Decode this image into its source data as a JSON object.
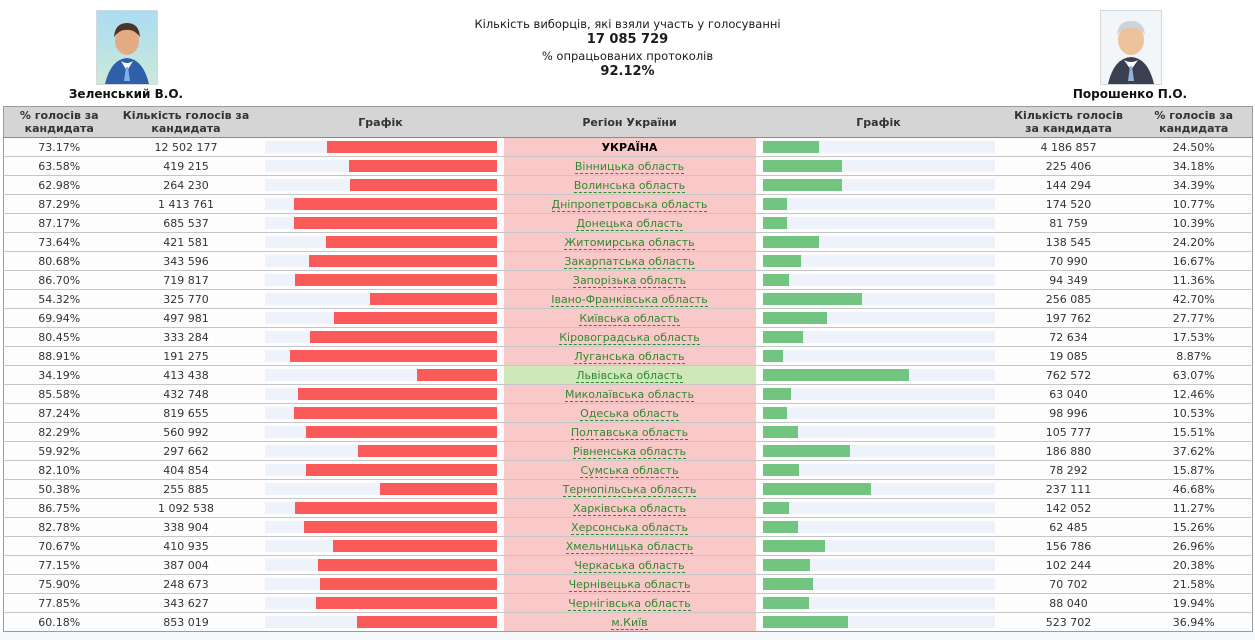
{
  "header": {
    "turnout_label": "Кількість виборців, які взяли участь у голосуванні",
    "turnout_value": "17 085 729",
    "protocols_label": "% опрацьованих протоколів",
    "protocols_value": "92.12%",
    "candidate_left": {
      "name": "Зеленський В.О."
    },
    "candidate_right": {
      "name": "Порошенко П.О."
    }
  },
  "table": {
    "columns": [
      "% голосів за кандидата",
      "Кількість голосів за кандидата",
      "Графік",
      "Регіон України",
      "Графік",
      "Кількість голосів за кандидата",
      "% голосів за кандидата"
    ],
    "rows": [
      {
        "region": "УКРАЇНА",
        "zelensky_pct": "73.17%",
        "zelensky_votes": "12 502 177",
        "poroshenko_votes": "4 186 857",
        "poroshenko_pct": "24.50%",
        "is_total": true,
        "highlight": false
      },
      {
        "region": "Вінницька область",
        "zelensky_pct": "63.58%",
        "zelensky_votes": "419 215",
        "poroshenko_votes": "225 406",
        "poroshenko_pct": "34.18%",
        "is_total": false,
        "highlight": false
      },
      {
        "region": "Волинська область",
        "zelensky_pct": "62.98%",
        "zelensky_votes": "264 230",
        "poroshenko_votes": "144 294",
        "poroshenko_pct": "34.39%",
        "is_total": false,
        "highlight": false
      },
      {
        "region": "Дніпропетровська область",
        "zelensky_pct": "87.29%",
        "zelensky_votes": "1 413 761",
        "poroshenko_votes": "174 520",
        "poroshenko_pct": "10.77%",
        "is_total": false,
        "highlight": false
      },
      {
        "region": "Донецька область",
        "zelensky_pct": "87.17%",
        "zelensky_votes": "685 537",
        "poroshenko_votes": "81 759",
        "poroshenko_pct": "10.39%",
        "is_total": false,
        "highlight": false
      },
      {
        "region": "Житомирська область",
        "zelensky_pct": "73.64%",
        "zelensky_votes": "421 581",
        "poroshenko_votes": "138 545",
        "poroshenko_pct": "24.20%",
        "is_total": false,
        "highlight": false
      },
      {
        "region": "Закарпатська область",
        "zelensky_pct": "80.68%",
        "zelensky_votes": "343 596",
        "poroshenko_votes": "70 990",
        "poroshenko_pct": "16.67%",
        "is_total": false,
        "highlight": false
      },
      {
        "region": "Запорізька область",
        "zelensky_pct": "86.70%",
        "zelensky_votes": "719 817",
        "poroshenko_votes": "94 349",
        "poroshenko_pct": "11.36%",
        "is_total": false,
        "highlight": false
      },
      {
        "region": "Івано-Франківська область",
        "zelensky_pct": "54.32%",
        "zelensky_votes": "325 770",
        "poroshenko_votes": "256 085",
        "poroshenko_pct": "42.70%",
        "is_total": false,
        "highlight": false
      },
      {
        "region": "Київська область",
        "zelensky_pct": "69.94%",
        "zelensky_votes": "497 981",
        "poroshenko_votes": "197 762",
        "poroshenko_pct": "27.77%",
        "is_total": false,
        "highlight": false
      },
      {
        "region": "Кіровоградська область",
        "zelensky_pct": "80.45%",
        "zelensky_votes": "333 284",
        "poroshenko_votes": "72 634",
        "poroshenko_pct": "17.53%",
        "is_total": false,
        "highlight": false
      },
      {
        "region": "Луганська область",
        "zelensky_pct": "88.91%",
        "zelensky_votes": "191 275",
        "poroshenko_votes": "19 085",
        "poroshenko_pct": "8.87%",
        "is_total": false,
        "highlight": false
      },
      {
        "region": "Львівська область",
        "zelensky_pct": "34.19%",
        "zelensky_votes": "413 438",
        "poroshenko_votes": "762 572",
        "poroshenko_pct": "63.07%",
        "is_total": false,
        "highlight": true
      },
      {
        "region": "Миколаївська область",
        "zelensky_pct": "85.58%",
        "zelensky_votes": "432 748",
        "poroshenko_votes": "63 040",
        "poroshenko_pct": "12.46%",
        "is_total": false,
        "highlight": false
      },
      {
        "region": "Одеська область",
        "zelensky_pct": "87.24%",
        "zelensky_votes": "819 655",
        "poroshenko_votes": "98 996",
        "poroshenko_pct": "10.53%",
        "is_total": false,
        "highlight": false
      },
      {
        "region": "Полтавська область",
        "zelensky_pct": "82.29%",
        "zelensky_votes": "560 992",
        "poroshenko_votes": "105 777",
        "poroshenko_pct": "15.51%",
        "is_total": false,
        "highlight": false
      },
      {
        "region": "Рівненська область",
        "zelensky_pct": "59.92%",
        "zelensky_votes": "297 662",
        "poroshenko_votes": "186 880",
        "poroshenko_pct": "37.62%",
        "is_total": false,
        "highlight": false
      },
      {
        "region": "Сумська область",
        "zelensky_pct": "82.10%",
        "zelensky_votes": "404 854",
        "poroshenko_votes": "78 292",
        "poroshenko_pct": "15.87%",
        "is_total": false,
        "highlight": false
      },
      {
        "region": "Тернопільська область",
        "zelensky_pct": "50.38%",
        "zelensky_votes": "255 885",
        "poroshenko_votes": "237 111",
        "poroshenko_pct": "46.68%",
        "is_total": false,
        "highlight": false
      },
      {
        "region": "Харківська область",
        "zelensky_pct": "86.75%",
        "zelensky_votes": "1 092 538",
        "poroshenko_votes": "142 052",
        "poroshenko_pct": "11.27%",
        "is_total": false,
        "highlight": false
      },
      {
        "region": "Херсонська область",
        "zelensky_pct": "82.78%",
        "zelensky_votes": "338 904",
        "poroshenko_votes": "62 485",
        "poroshenko_pct": "15.26%",
        "is_total": false,
        "highlight": false
      },
      {
        "region": "Хмельницька область",
        "zelensky_pct": "70.67%",
        "zelensky_votes": "410 935",
        "poroshenko_votes": "156 786",
        "poroshenko_pct": "26.96%",
        "is_total": false,
        "highlight": false
      },
      {
        "region": "Черкаська область",
        "zelensky_pct": "77.15%",
        "zelensky_votes": "387 004",
        "poroshenko_votes": "102 244",
        "poroshenko_pct": "20.38%",
        "is_total": false,
        "highlight": false
      },
      {
        "region": "Чернівецька область",
        "zelensky_pct": "75.90%",
        "zelensky_votes": "248 673",
        "poroshenko_votes": "70 702",
        "poroshenko_pct": "21.58%",
        "is_total": false,
        "highlight": false
      },
      {
        "region": "Чернігівська область",
        "zelensky_pct": "77.85%",
        "zelensky_votes": "343 627",
        "poroshenko_votes": "88 040",
        "poroshenko_pct": "19.94%",
        "is_total": false,
        "highlight": false
      },
      {
        "region": "м.Київ",
        "zelensky_pct": "60.18%",
        "zelensky_votes": "853 019",
        "poroshenko_votes": "523 702",
        "poroshenko_pct": "36.94%",
        "is_total": false,
        "highlight": false
      }
    ]
  },
  "colors": {
    "bar_left": "#fa5a5a",
    "bar_right": "#72c581",
    "bar_track": "#eef2fb",
    "region_bg": "#f9c9c9",
    "region_highlight_bg": "#cfe8ba",
    "region_link": "#2f8a2f",
    "header_bg": "#d5d5d5"
  }
}
